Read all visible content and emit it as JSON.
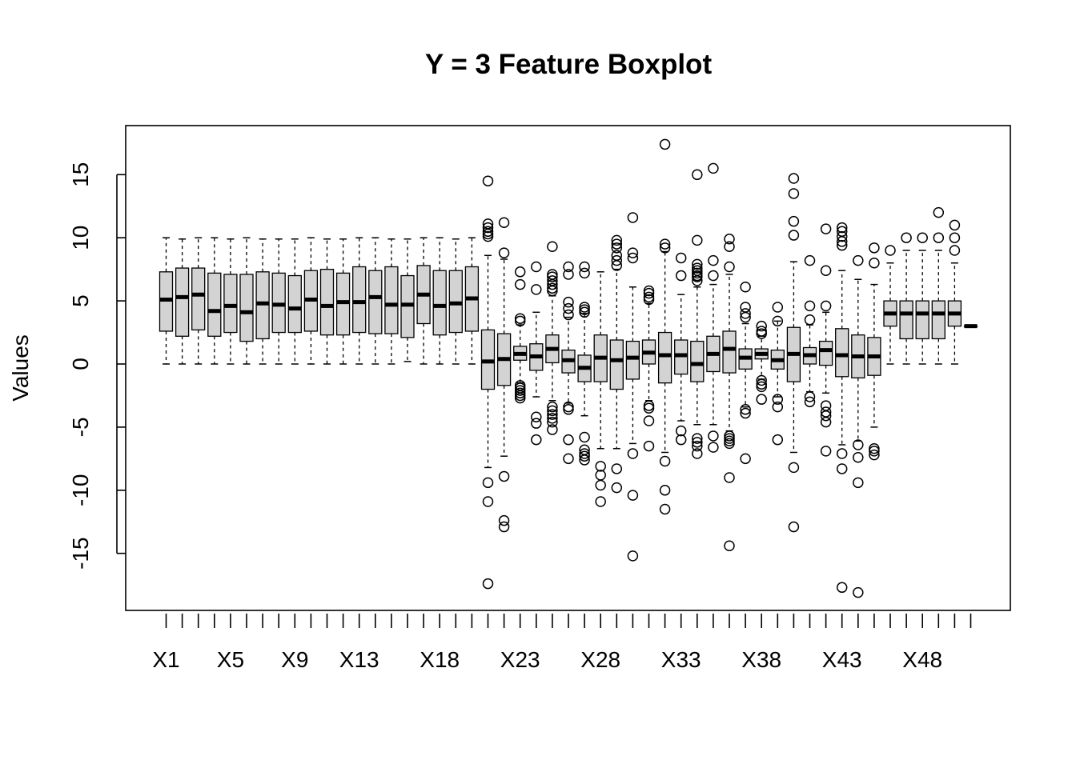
{
  "chart_data": {
    "type": "boxplot",
    "title": "Y = 3 Feature Boxplot",
    "xlabel": "",
    "ylabel": "Values",
    "ylim": [
      -19.5,
      19
    ],
    "yticks": [
      15,
      10,
      5,
      0,
      -5,
      -10,
      -15
    ],
    "shown_x_labels": [
      "X1",
      "X5",
      "X9",
      "X13",
      "X18",
      "X23",
      "X28",
      "X33",
      "X38",
      "X43",
      "X48"
    ],
    "grid": false,
    "legend": "none",
    "colors": {
      "box_fill": "#d3d3d3",
      "stroke": "#000000"
    },
    "boxes": [
      {
        "name": "X1",
        "min": 0,
        "q1": 2.6,
        "median": 5.1,
        "q3": 7.3,
        "max": 10,
        "outliers": []
      },
      {
        "name": "X2",
        "min": 0,
        "q1": 2.2,
        "median": 5.3,
        "q3": 7.6,
        "max": 9.9,
        "outliers": []
      },
      {
        "name": "X3",
        "min": 0,
        "q1": 2.7,
        "median": 5.5,
        "q3": 7.6,
        "max": 10,
        "outliers": []
      },
      {
        "name": "X4",
        "min": 0,
        "q1": 2.2,
        "median": 4.2,
        "q3": 7.2,
        "max": 10,
        "outliers": []
      },
      {
        "name": "X5",
        "min": 0,
        "q1": 2.5,
        "median": 4.6,
        "q3": 7.1,
        "max": 9.9,
        "outliers": []
      },
      {
        "name": "X6",
        "min": 0,
        "q1": 1.8,
        "median": 4.1,
        "q3": 7.1,
        "max": 10,
        "outliers": []
      },
      {
        "name": "X7",
        "min": 0,
        "q1": 2,
        "median": 4.8,
        "q3": 7.3,
        "max": 9.9,
        "outliers": []
      },
      {
        "name": "X8",
        "min": 0,
        "q1": 2.5,
        "median": 4.7,
        "q3": 7.2,
        "max": 9.9,
        "outliers": []
      },
      {
        "name": "X9",
        "min": 0,
        "q1": 2.5,
        "median": 4.4,
        "q3": 7,
        "max": 9.9,
        "outliers": []
      },
      {
        "name": "X10",
        "min": 0,
        "q1": 2.6,
        "median": 5.1,
        "q3": 7.4,
        "max": 10,
        "outliers": []
      },
      {
        "name": "X11",
        "min": 0,
        "q1": 2.3,
        "median": 4.6,
        "q3": 7.5,
        "max": 9.9,
        "outliers": []
      },
      {
        "name": "X12",
        "min": 0,
        "q1": 2.3,
        "median": 4.9,
        "q3": 7.2,
        "max": 9.9,
        "outliers": []
      },
      {
        "name": "X13",
        "min": 0,
        "q1": 2.5,
        "median": 4.9,
        "q3": 7.7,
        "max": 10,
        "outliers": []
      },
      {
        "name": "X14",
        "min": 0,
        "q1": 2.4,
        "median": 5.3,
        "q3": 7.4,
        "max": 10,
        "outliers": []
      },
      {
        "name": "X15",
        "min": 0,
        "q1": 2.4,
        "median": 4.7,
        "q3": 7.7,
        "max": 9.9,
        "outliers": []
      },
      {
        "name": "X16",
        "min": 0.2,
        "q1": 2.1,
        "median": 4.7,
        "q3": 7,
        "max": 9.9,
        "outliers": []
      },
      {
        "name": "X17",
        "min": 0,
        "q1": 3.2,
        "median": 5.5,
        "q3": 7.8,
        "max": 10,
        "outliers": []
      },
      {
        "name": "X18",
        "min": 0,
        "q1": 2.3,
        "median": 4.6,
        "q3": 7.4,
        "max": 10,
        "outliers": []
      },
      {
        "name": "X19",
        "min": 0,
        "q1": 2.5,
        "median": 4.8,
        "q3": 7.4,
        "max": 9.9,
        "outliers": []
      },
      {
        "name": "X20",
        "min": 0,
        "q1": 2.6,
        "median": 5.2,
        "q3": 7.7,
        "max": 10,
        "outliers": []
      },
      {
        "name": "X21",
        "min": -8.2,
        "q1": -2,
        "median": 0.2,
        "q3": 2.7,
        "max": 8.6,
        "outliers": [
          14.5,
          11.1,
          10.8,
          10.5,
          10.3,
          10.1,
          -9.4,
          -10.9,
          -17.4
        ]
      },
      {
        "name": "X22",
        "min": -7.3,
        "q1": -1.7,
        "median": 0.4,
        "q3": 2.4,
        "max": 8.3,
        "outliers": [
          11.2,
          8.8,
          -8.9,
          -12.4,
          -12.9
        ]
      },
      {
        "name": "X23",
        "min": -1.5,
        "q1": 0.3,
        "median": 0.8,
        "q3": 1.4,
        "max": 3.1,
        "outliers": [
          7.3,
          6.3,
          3.6,
          3.4,
          -1.7,
          -1.9,
          -2.1,
          -2.3,
          -2.5,
          -2.7
        ]
      },
      {
        "name": "X24",
        "min": -2.6,
        "q1": -0.5,
        "median": 0.6,
        "q3": 1.6,
        "max": 4.1,
        "outliers": [
          7.7,
          5.9,
          -4.2,
          -4.7,
          -6
        ]
      },
      {
        "name": "X25",
        "min": -2.9,
        "q1": 0.1,
        "median": 1.2,
        "q3": 2.3,
        "max": 5.4,
        "outliers": [
          9.3,
          7.1,
          6.9,
          6.6,
          6.3,
          6,
          5.8,
          -3.4,
          -3.7,
          -4,
          -4.3,
          -4.6,
          -5.2
        ]
      },
      {
        "name": "X26",
        "min": -3.1,
        "q1": -0.7,
        "median": 0.3,
        "q3": 1.1,
        "max": 3.7,
        "outliers": [
          7.7,
          7.1,
          4.9,
          4.4,
          3.9,
          -3.4,
          -3.6,
          -6,
          -7.5
        ]
      },
      {
        "name": "X27",
        "min": -4.1,
        "q1": -1.4,
        "median": -0.3,
        "q3": 0.7,
        "max": 4,
        "outliers": [
          7.7,
          7.2,
          4.5,
          4.3,
          4.1,
          -5.8,
          -6.8,
          -7.1,
          -7.3,
          -7.6
        ]
      },
      {
        "name": "X28",
        "min": -6.7,
        "q1": -1.4,
        "median": 0.5,
        "q3": 2.3,
        "max": 7.3,
        "outliers": [
          -8.1,
          -8.8,
          -9.6,
          -10.9
        ]
      },
      {
        "name": "X29",
        "min": -6.7,
        "q1": -2,
        "median": 0.3,
        "q3": 1.9,
        "max": 7.5,
        "outliers": [
          9.8,
          9.5,
          9.2,
          8.6,
          8.2,
          7.8,
          -8.3,
          -9.8
        ]
      },
      {
        "name": "X30",
        "min": -6.3,
        "q1": -1.2,
        "median": 0.5,
        "q3": 1.8,
        "max": 6.1,
        "outliers": [
          11.6,
          8.8,
          8.4,
          -7.1,
          -10.4,
          -15.2
        ]
      },
      {
        "name": "X31",
        "min": -2.9,
        "q1": 0,
        "median": 0.9,
        "q3": 1.9,
        "max": 4.8,
        "outliers": [
          5.8,
          5.6,
          5.3,
          5.1,
          -3.3,
          -3.5,
          -4.5,
          -6.5
        ]
      },
      {
        "name": "X32",
        "min": -7,
        "q1": -1.5,
        "median": 0.7,
        "q3": 2.5,
        "max": 8.9,
        "outliers": [
          17.4,
          9.5,
          9.2,
          -7.7,
          -10,
          -11.5
        ]
      },
      {
        "name": "X33",
        "min": -4.5,
        "q1": -0.8,
        "median": 0.7,
        "q3": 1.9,
        "max": 5.5,
        "outliers": [
          8.4,
          7,
          -5.3,
          -6
        ]
      },
      {
        "name": "X34",
        "min": -4.8,
        "q1": -1.4,
        "median": 0,
        "q3": 1.8,
        "max": 6.1,
        "outliers": [
          15,
          9.8,
          7.9,
          7.6,
          7.4,
          7.2,
          7,
          6.9,
          6.6,
          -5.9,
          -6.2,
          -6.5,
          -7.1
        ]
      },
      {
        "name": "X35",
        "min": -4.8,
        "q1": -0.6,
        "median": 0.8,
        "q3": 2.2,
        "max": 6.3,
        "outliers": [
          15.5,
          8.2,
          7,
          -5.7,
          -6.6
        ]
      },
      {
        "name": "X36",
        "min": -5.3,
        "q1": -0.7,
        "median": 1.2,
        "q3": 2.6,
        "max": 7.1,
        "outliers": [
          9.9,
          9.3,
          7.7,
          -5.7,
          -5.9,
          -6.1,
          -6.3,
          -9,
          -14.4
        ]
      },
      {
        "name": "X37",
        "min": -3.4,
        "q1": -0.4,
        "median": 0.5,
        "q3": 1.2,
        "max": 3.2,
        "outliers": [
          6.1,
          4.5,
          4,
          3.7,
          -3.6,
          -3.9,
          -7.5
        ]
      },
      {
        "name": "X38",
        "min": -1.2,
        "q1": 0.4,
        "median": 0.8,
        "q3": 1.2,
        "max": 2.2,
        "outliers": [
          3,
          2.6,
          2.4,
          -1.3,
          -1.6,
          -1.8,
          -2.8
        ]
      },
      {
        "name": "X39",
        "min": -2.6,
        "q1": -0.4,
        "median": 0.3,
        "q3": 1.1,
        "max": 3.4,
        "outliers": [
          4.5,
          3.4,
          -2.8,
          -3.4,
          -6
        ]
      },
      {
        "name": "X40",
        "min": -7,
        "q1": -1.4,
        "median": 0.8,
        "q3": 2.9,
        "max": 8.1,
        "outliers": [
          14.7,
          13.5,
          11.3,
          10.2,
          -8.2,
          -12.9
        ]
      },
      {
        "name": "X41",
        "min": -2.2,
        "q1": 0,
        "median": 0.7,
        "q3": 1.3,
        "max": 3.1,
        "outliers": [
          8.2,
          4.6,
          3.5,
          -2.6,
          -3
        ]
      },
      {
        "name": "X42",
        "min": -2.3,
        "q1": -0.1,
        "median": 1.1,
        "q3": 1.8,
        "max": 4.1,
        "outliers": [
          10.7,
          7.4,
          4.6,
          -3.3,
          -3.8,
          -4.1,
          -4.6,
          -6.9
        ]
      },
      {
        "name": "X43",
        "min": -6.4,
        "q1": -1,
        "median": 0.7,
        "q3": 2.8,
        "max": 7.4,
        "outliers": [
          10.8,
          10.5,
          10.1,
          9.7,
          9.4,
          -7.1,
          -8.3,
          -17.7
        ]
      },
      {
        "name": "X44",
        "min": -6.1,
        "q1": -1.1,
        "median": 0.6,
        "q3": 2.3,
        "max": 6.7,
        "outliers": [
          8.2,
          -6.4,
          -7.4,
          -9.4,
          -18.1
        ]
      },
      {
        "name": "X45",
        "min": -5,
        "q1": -0.9,
        "median": 0.6,
        "q3": 2.1,
        "max": 6.3,
        "outliers": [
          9.2,
          8,
          -6.7,
          -6.9,
          -7.2
        ]
      },
      {
        "name": "X46",
        "min": 0,
        "q1": 3,
        "median": 4,
        "q3": 5,
        "max": 8,
        "outliers": [
          9
        ]
      },
      {
        "name": "X47",
        "min": 0,
        "q1": 2,
        "median": 4,
        "q3": 5,
        "max": 9,
        "outliers": [
          10
        ]
      },
      {
        "name": "X48",
        "min": 0,
        "q1": 2,
        "median": 4,
        "q3": 5,
        "max": 9,
        "outliers": [
          10
        ]
      },
      {
        "name": "X49",
        "min": 0,
        "q1": 2,
        "median": 4,
        "q3": 5,
        "max": 9,
        "outliers": [
          12,
          10
        ]
      },
      {
        "name": "X50",
        "min": 0,
        "q1": 3,
        "median": 4,
        "q3": 5,
        "max": 8,
        "outliers": [
          11,
          10,
          9
        ]
      },
      {
        "name": "X51",
        "min": 3,
        "q1": 3,
        "median": 3,
        "q3": 3,
        "max": 3,
        "outliers": []
      }
    ]
  }
}
